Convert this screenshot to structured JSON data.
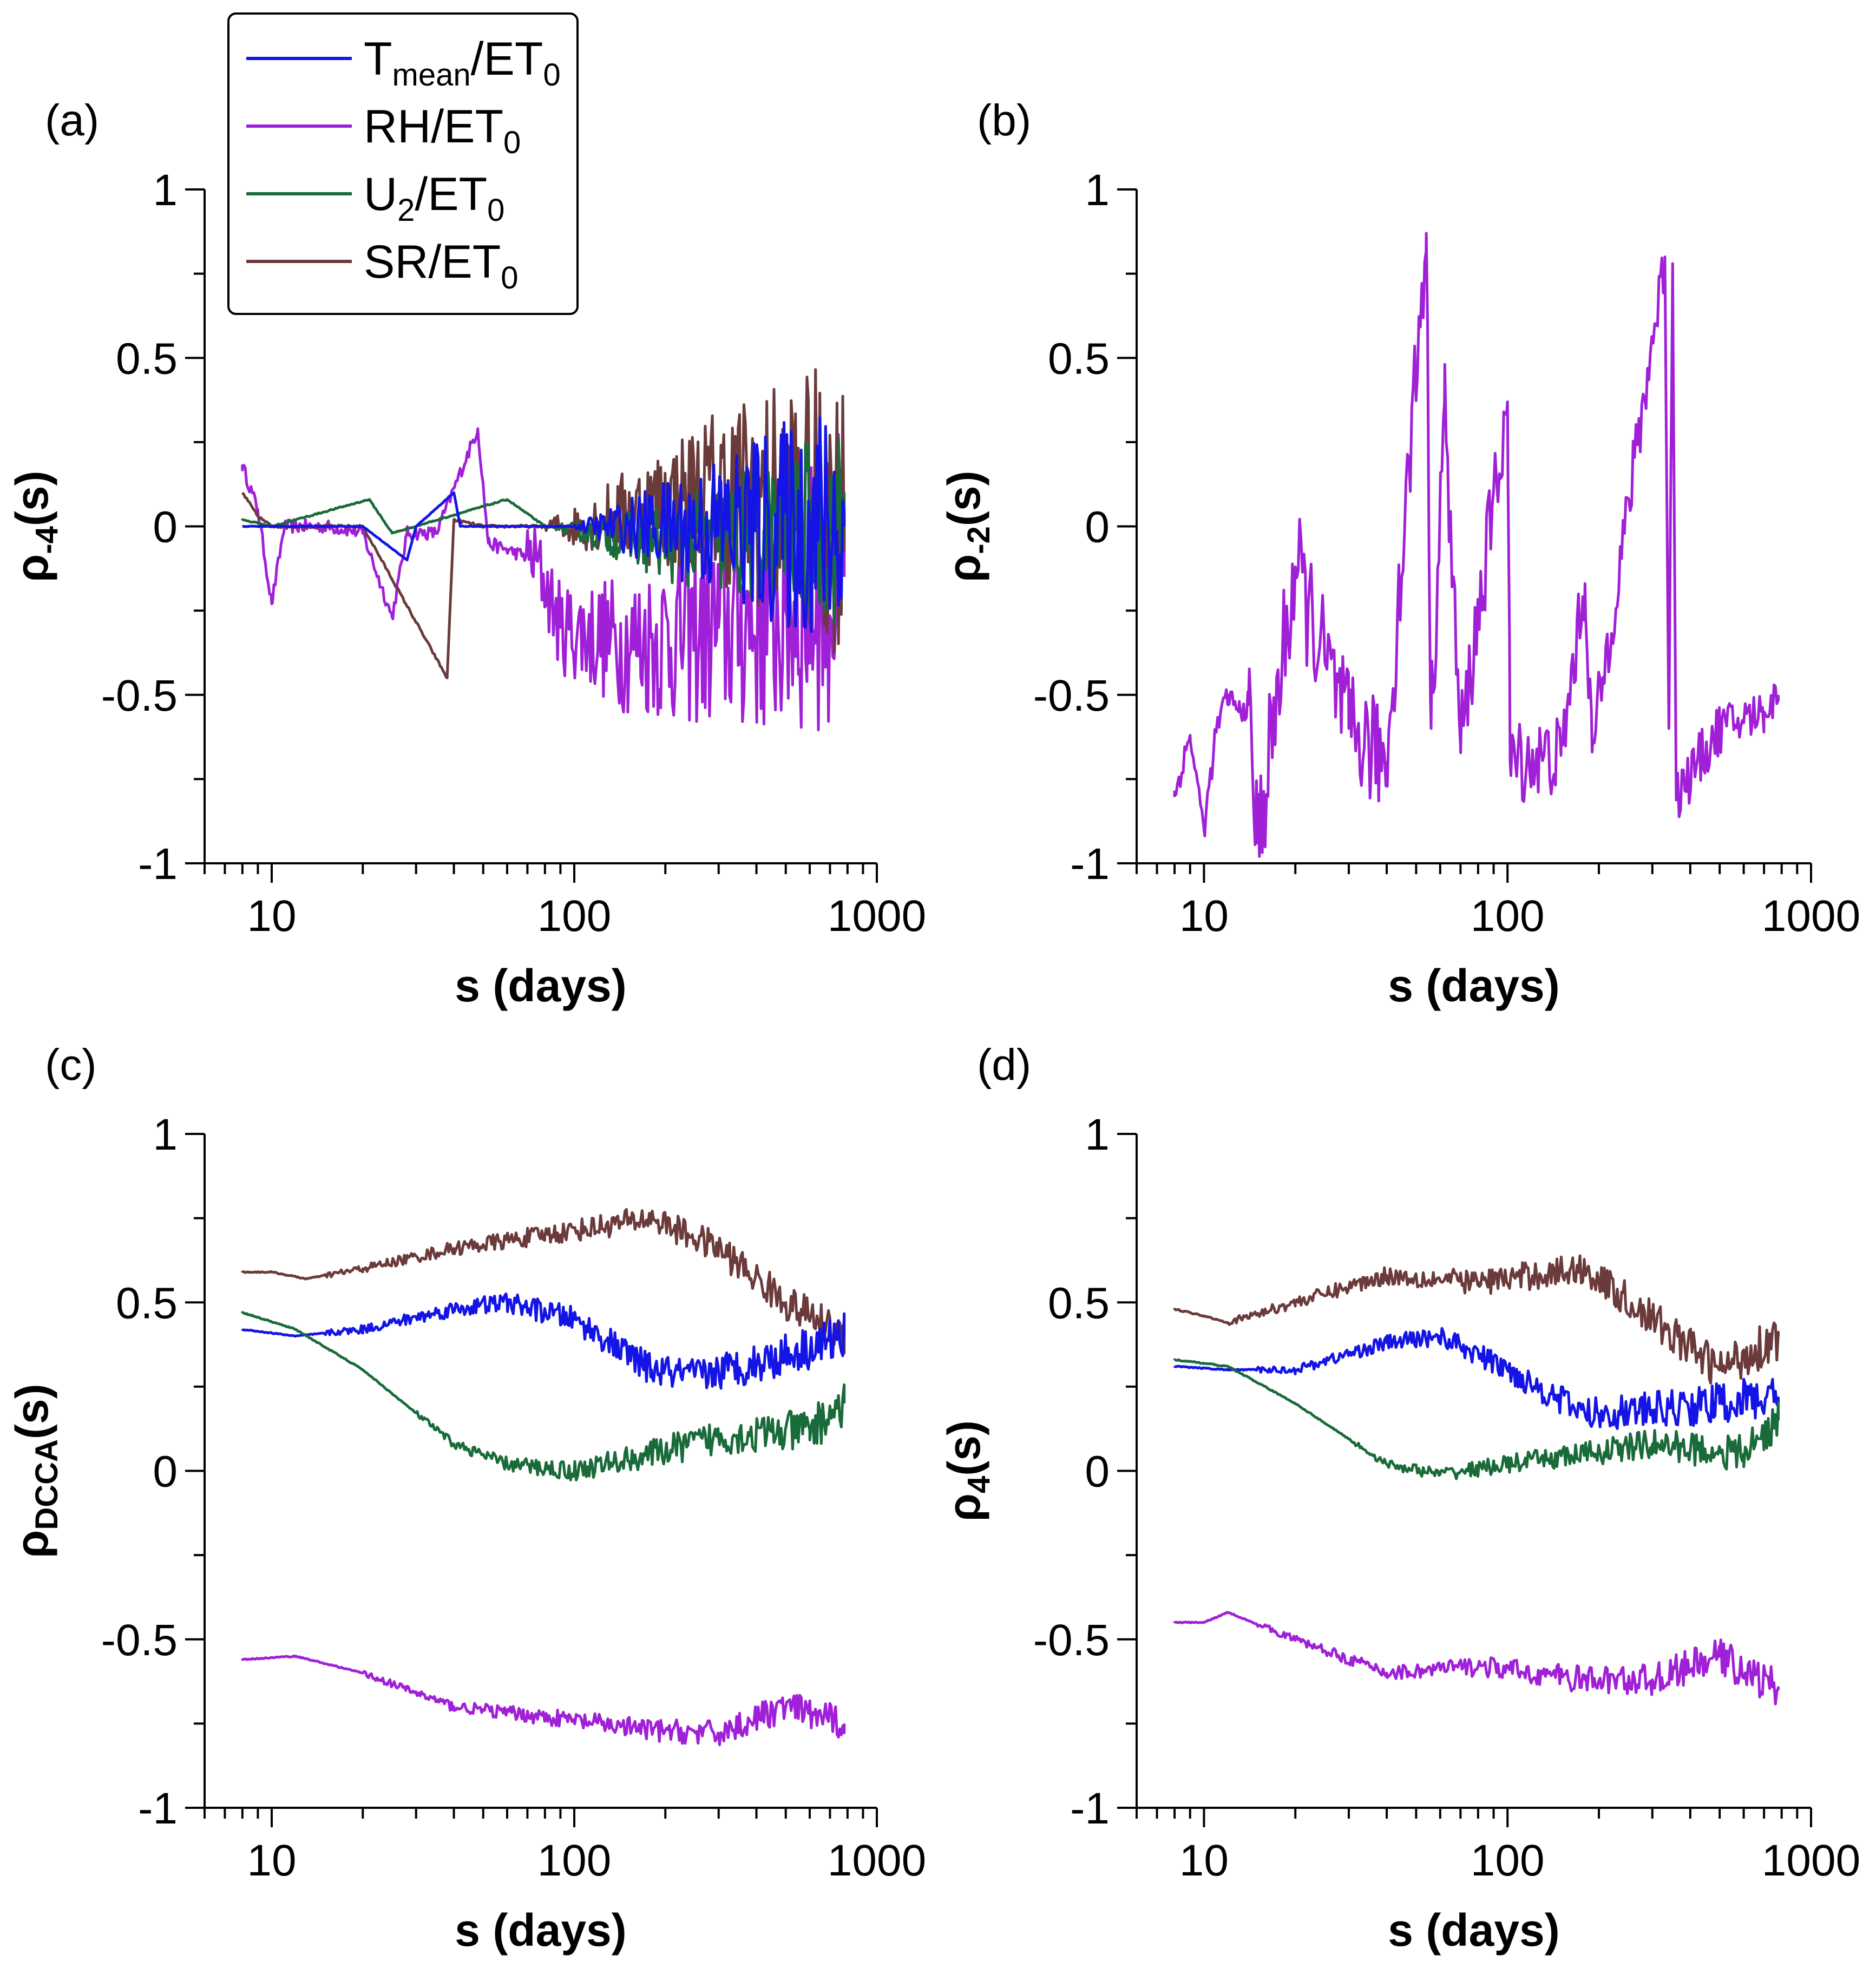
{
  "figure": "Multi-panel DCCA correlation plots",
  "colors": {
    "tmean": "#1414e6",
    "rh": "#a020d8",
    "u2": "#1a6b3a",
    "sr": "#6b3a3a"
  },
  "legend": [
    {
      "key": "tmean",
      "base": "T",
      "sub": "mean",
      "rest": "/ET",
      "sub2": "0"
    },
    {
      "key": "rh",
      "base": "RH/ET",
      "sub": "0",
      "rest": "",
      "sub2": ""
    },
    {
      "key": "u2",
      "base": "U",
      "sub": "2",
      "rest": "/ET",
      "sub2": "0"
    },
    {
      "key": "sr",
      "base": "SR/ET",
      "sub": "0",
      "rest": "",
      "sub2": ""
    }
  ],
  "chart_data": [
    {
      "id": "a",
      "type": "line",
      "panel_label": "(a)",
      "ylabel_base": "ρ",
      "ylabel_sub": "-4",
      "ylabel_tail": "(s)",
      "xlabel": "s (days)",
      "xscale": "log",
      "xlim": [
        6,
        1000
      ],
      "ylim": [
        -1,
        1
      ],
      "xticks": [
        "10",
        "100",
        "1000"
      ],
      "yticks": [
        "1",
        "0.5",
        "0",
        "-0.5",
        "-1"
      ],
      "series": [
        {
          "key": "rh",
          "name": "RH/ET0",
          "noisy": true,
          "noise_start": 70,
          "noise": [
            0.1,
            0.45
          ],
          "pts": [
            [
              8,
              0.18
            ],
            [
              9,
              0.05
            ],
            [
              10,
              -0.23
            ],
            [
              11,
              0.0
            ],
            [
              15,
              0.0
            ],
            [
              18,
              -0.01
            ],
            [
              20,
              -0.02
            ],
            [
              25,
              -0.27
            ],
            [
              28,
              -0.02
            ],
            [
              35,
              -0.02
            ],
            [
              48,
              0.29
            ],
            [
              52,
              -0.05
            ],
            [
              75,
              -0.1
            ],
            [
              90,
              -0.3
            ],
            [
              150,
              -0.35
            ],
            [
              300,
              -0.3
            ],
            [
              500,
              -0.25
            ],
            [
              780,
              -0.15
            ]
          ]
        },
        {
          "key": "sr",
          "name": "SR/ET0",
          "noisy": true,
          "noise_start": 80,
          "noise": [
            0.02,
            0.45
          ],
          "pts": [
            [
              8,
              0.1
            ],
            [
              9,
              0.03
            ],
            [
              10,
              0.0
            ],
            [
              20,
              0.0
            ],
            [
              38,
              -0.45
            ],
            [
              40,
              0.02
            ],
            [
              50,
              0.0
            ],
            [
              70,
              0.0
            ],
            [
              100,
              0.0
            ],
            [
              300,
              0.1
            ],
            [
              780,
              0.05
            ]
          ]
        },
        {
          "key": "u2",
          "name": "U2/ET0",
          "noisy": true,
          "noise_start": 90,
          "noise": [
            0.01,
            0.3
          ],
          "pts": [
            [
              8,
              0.02
            ],
            [
              10,
              0.0
            ],
            [
              21,
              0.08
            ],
            [
              25,
              -0.02
            ],
            [
              60,
              0.08
            ],
            [
              80,
              0.0
            ],
            [
              200,
              -0.05
            ],
            [
              780,
              0.0
            ]
          ]
        },
        {
          "key": "tmean",
          "name": "Tmean/ET0",
          "noisy": true,
          "noise_start": 100,
          "noise": [
            0.005,
            0.4
          ],
          "pts": [
            [
              8,
              0.0
            ],
            [
              20,
              0.0
            ],
            [
              28,
              -0.1
            ],
            [
              30,
              0.0
            ],
            [
              40,
              0.1
            ],
            [
              42,
              0.0
            ],
            [
              100,
              0.0
            ],
            [
              780,
              0.0
            ]
          ]
        }
      ]
    },
    {
      "id": "b",
      "type": "line",
      "panel_label": "(b)",
      "ylabel_base": "ρ",
      "ylabel_sub": "-2",
      "ylabel_tail": "(s)",
      "xlabel": "s (days)",
      "xscale": "log",
      "xlim": [
        6,
        1000
      ],
      "ylim": [
        -1,
        1
      ],
      "xticks": [
        "10",
        "100",
        "1000"
      ],
      "yticks": [
        "1",
        "0.5",
        "0",
        "-0.5",
        "-1"
      ],
      "series": [
        {
          "key": "rh",
          "name": "RH/ET0",
          "noisy": true,
          "noise_start": 14,
          "noise": [
            0.2,
            0.06
          ],
          "pts": [
            [
              8,
              -0.8
            ],
            [
              9,
              -0.62
            ],
            [
              10,
              -0.9
            ],
            [
              11,
              -0.6
            ],
            [
              12,
              -0.5
            ],
            [
              13,
              -0.55
            ],
            [
              14,
              -0.53
            ],
            [
              15,
              -0.94
            ],
            [
              20,
              -0.12
            ],
            [
              25,
              -0.4
            ],
            [
              30,
              -0.6
            ],
            [
              40,
              -0.7
            ],
            [
              54,
              0.87
            ],
            [
              56,
              -0.6
            ],
            [
              62,
              0.37
            ],
            [
              70,
              -0.65
            ],
            [
              100,
              0.37
            ],
            [
              102,
              -0.7
            ],
            [
              150,
              -0.68
            ],
            [
              180,
              -0.17
            ],
            [
              190,
              -0.67
            ],
            [
              330,
              0.8
            ],
            [
              340,
              -0.6
            ],
            [
              350,
              0.78
            ],
            [
              360,
              -0.8
            ],
            [
              500,
              -0.6
            ],
            [
              700,
              -0.55
            ],
            [
              780,
              -0.5
            ]
          ]
        }
      ]
    },
    {
      "id": "c",
      "type": "line",
      "panel_label": "(c)",
      "ylabel_base": "ρ",
      "ylabel_sub": "DCCA",
      "ylabel_tail": "(s)",
      "xlabel": "s (days)",
      "xscale": "log",
      "xlim": [
        6,
        1000
      ],
      "ylim": [
        -1,
        1
      ],
      "xticks": [
        "10",
        "100",
        "1000"
      ],
      "yticks": [
        "1",
        "0.5",
        "0",
        "-0.5",
        "-1"
      ],
      "series": [
        {
          "key": "sr",
          "name": "SR/ET0",
          "noisy": true,
          "noise_start": 15,
          "noise": [
            0.008,
            0.06
          ],
          "pts": [
            [
              8,
              0.59
            ],
            [
              10,
              0.59
            ],
            [
              13,
              0.57
            ],
            [
              20,
              0.6
            ],
            [
              40,
              0.66
            ],
            [
              80,
              0.7
            ],
            [
              180,
              0.75
            ],
            [
              300,
              0.66
            ],
            [
              500,
              0.5
            ],
            [
              780,
              0.4
            ]
          ]
        },
        {
          "key": "tmean",
          "name": "Tmean/ET0",
          "noisy": true,
          "noise_start": 15,
          "noise": [
            0.008,
            0.07
          ],
          "pts": [
            [
              8,
              0.42
            ],
            [
              12,
              0.4
            ],
            [
              20,
              0.42
            ],
            [
              40,
              0.48
            ],
            [
              60,
              0.5
            ],
            [
              100,
              0.45
            ],
            [
              180,
              0.3
            ],
            [
              250,
              0.28
            ],
            [
              400,
              0.32
            ],
            [
              780,
              0.4
            ]
          ]
        },
        {
          "key": "u2",
          "name": "U2/ET0",
          "noisy": true,
          "noise_start": 30,
          "noise": [
            0.008,
            0.07
          ],
          "pts": [
            [
              8,
              0.47
            ],
            [
              12,
              0.42
            ],
            [
              20,
              0.3
            ],
            [
              40,
              0.08
            ],
            [
              60,
              0.02
            ],
            [
              100,
              0.0
            ],
            [
              180,
              0.05
            ],
            [
              300,
              0.1
            ],
            [
              600,
              0.12
            ],
            [
              780,
              0.2
            ]
          ]
        },
        {
          "key": "rh",
          "name": "RH/ET0",
          "noisy": true,
          "noise_start": 20,
          "noise": [
            0.008,
            0.05
          ],
          "pts": [
            [
              8,
              -0.56
            ],
            [
              12,
              -0.55
            ],
            [
              20,
              -0.6
            ],
            [
              40,
              -0.7
            ],
            [
              80,
              -0.73
            ],
            [
              180,
              -0.77
            ],
            [
              300,
              -0.78
            ],
            [
              500,
              -0.7
            ],
            [
              780,
              -0.75
            ]
          ]
        }
      ]
    },
    {
      "id": "d",
      "type": "line",
      "panel_label": "(d)",
      "ylabel_base": "ρ",
      "ylabel_sub": "4",
      "ylabel_tail": "(s)",
      "xlabel": "s (days)",
      "xscale": "log",
      "xlim": [
        6,
        1000
      ],
      "ylim": [
        -1,
        1
      ],
      "xticks": [
        "10",
        "100",
        "1000"
      ],
      "yticks": [
        "1",
        "0.5",
        "0",
        "-0.5",
        "-1"
      ],
      "series": [
        {
          "key": "sr",
          "name": "SR/ET0",
          "noisy": true,
          "noise_start": 12,
          "noise": [
            0.01,
            0.07
          ],
          "pts": [
            [
              8,
              0.48
            ],
            [
              10,
              0.46
            ],
            [
              12,
              0.44
            ],
            [
              20,
              0.5
            ],
            [
              40,
              0.58
            ],
            [
              80,
              0.56
            ],
            [
              180,
              0.6
            ],
            [
              300,
              0.45
            ],
            [
              500,
              0.3
            ],
            [
              780,
              0.4
            ]
          ]
        },
        {
          "key": "tmean",
          "name": "Tmean/ET0",
          "noisy": true,
          "noise_start": 15,
          "noise": [
            0.008,
            0.07
          ],
          "pts": [
            [
              8,
              0.31
            ],
            [
              12,
              0.3
            ],
            [
              20,
              0.3
            ],
            [
              40,
              0.38
            ],
            [
              60,
              0.4
            ],
            [
              100,
              0.3
            ],
            [
              180,
              0.17
            ],
            [
              300,
              0.18
            ],
            [
              500,
              0.2
            ],
            [
              780,
              0.22
            ]
          ]
        },
        {
          "key": "u2",
          "name": "U2/ET0",
          "noisy": true,
          "noise_start": 30,
          "noise": [
            0.008,
            0.06
          ],
          "pts": [
            [
              8,
              0.33
            ],
            [
              12,
              0.31
            ],
            [
              20,
              0.2
            ],
            [
              40,
              0.02
            ],
            [
              60,
              -0.01
            ],
            [
              100,
              0.02
            ],
            [
              180,
              0.05
            ],
            [
              300,
              0.08
            ],
            [
              600,
              0.05
            ],
            [
              780,
              0.15
            ]
          ]
        },
        {
          "key": "rh",
          "name": "RH/ET0",
          "noisy": true,
          "noise_start": 15,
          "noise": [
            0.008,
            0.06
          ],
          "pts": [
            [
              8,
              -0.45
            ],
            [
              10,
              -0.45
            ],
            [
              12,
              -0.42
            ],
            [
              20,
              -0.5
            ],
            [
              40,
              -0.6
            ],
            [
              80,
              -0.58
            ],
            [
              180,
              -0.62
            ],
            [
              300,
              -0.62
            ],
            [
              500,
              -0.55
            ],
            [
              780,
              -0.65
            ]
          ]
        }
      ]
    }
  ]
}
